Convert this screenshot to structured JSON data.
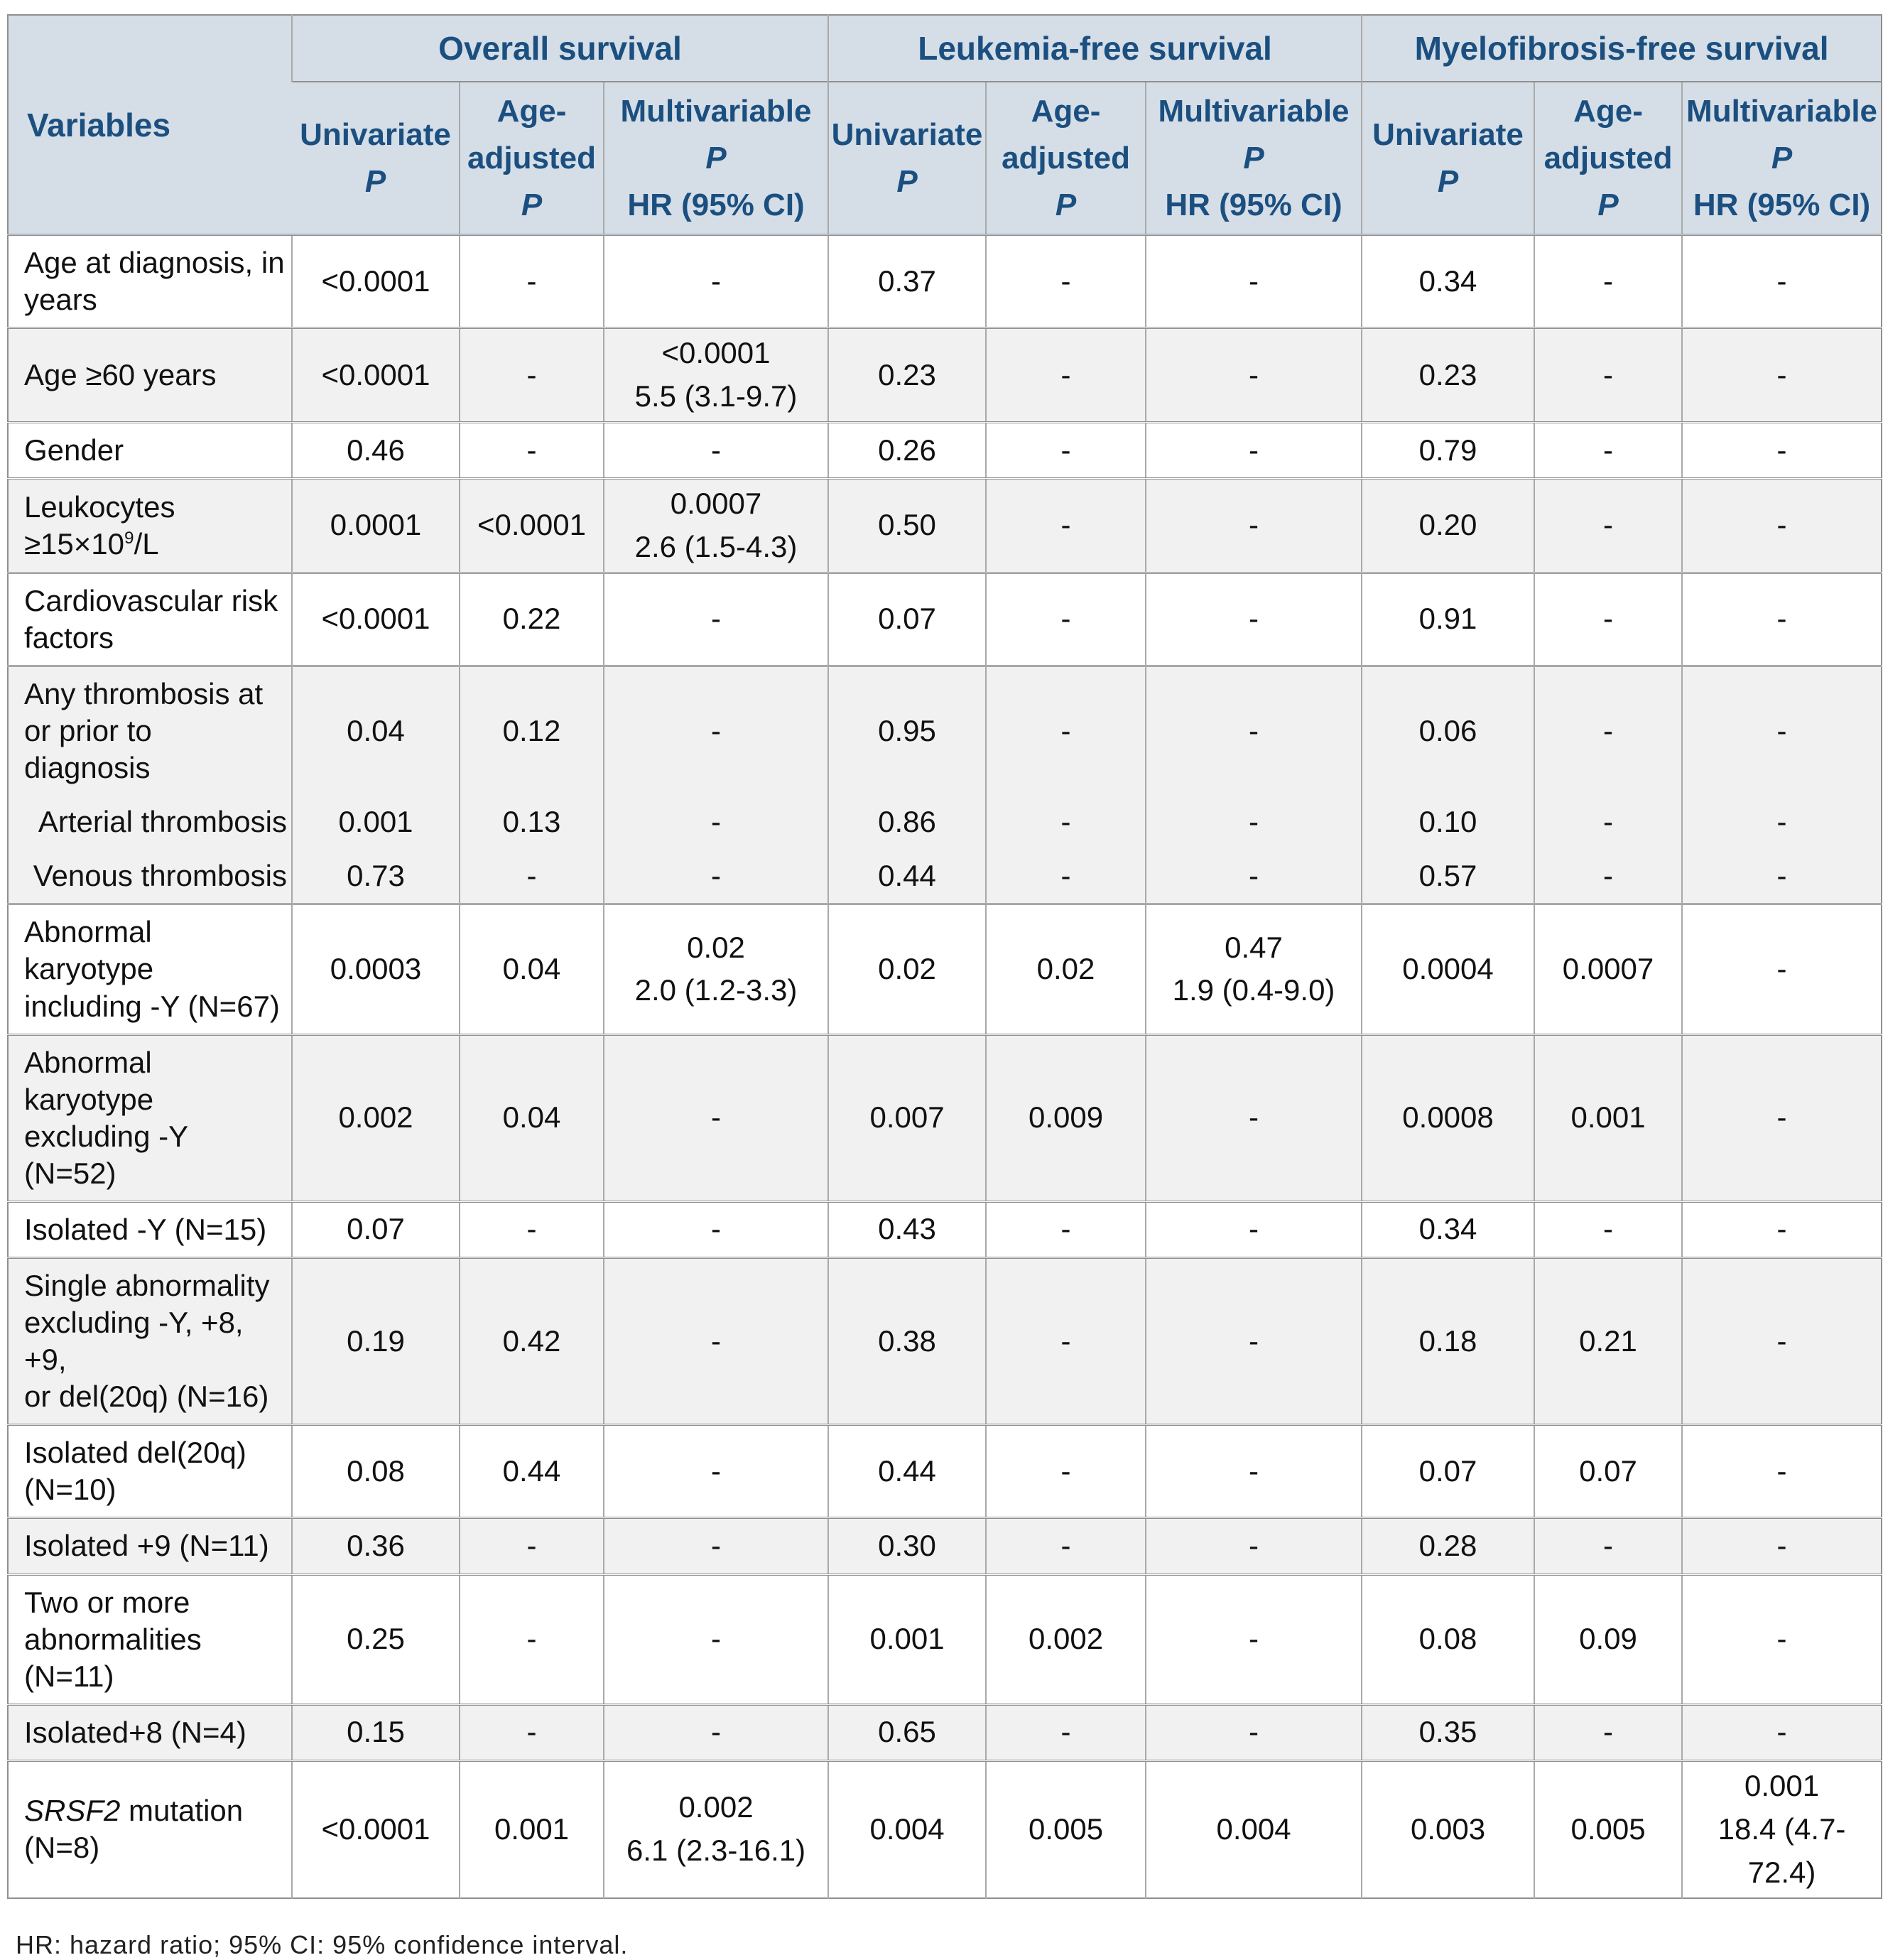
{
  "colors": {
    "header-bg": "#d5dee7",
    "header-text": "#1b4f80",
    "row-alt": "#f1f1f1",
    "border-dark": "#8f8f8f",
    "border-light": "#a9a9a9"
  },
  "table": {
    "variables_header": "Variables",
    "groups": [
      {
        "label": "Overall survival"
      },
      {
        "label": "Leukemia-free survival"
      },
      {
        "label": "Myelofibrosis-free survival"
      }
    ],
    "sub_headers": [
      {
        "lines": [
          {
            "text": "Univariate"
          },
          {
            "text": "P",
            "italic": true
          }
        ]
      },
      {
        "lines": [
          {
            "text": "Age-"
          },
          {
            "text": "adjusted"
          },
          {
            "text": "P",
            "italic": true
          }
        ]
      },
      {
        "lines": [
          {
            "text": "Multivariable"
          },
          {
            "text": "P",
            "italic": true
          },
          {
            "text": "HR (95% CI)"
          }
        ]
      },
      {
        "lines": [
          {
            "text": "Univariate"
          },
          {
            "text": "P",
            "italic": true
          }
        ]
      },
      {
        "lines": [
          {
            "text": "Age-"
          },
          {
            "text": "adjusted"
          },
          {
            "text": "P",
            "italic": true
          }
        ]
      },
      {
        "lines": [
          {
            "text": "Multivariable"
          },
          {
            "text": "P",
            "italic": true
          },
          {
            "text": "HR (95% CI)"
          }
        ]
      },
      {
        "lines": [
          {
            "text": "Univariate"
          },
          {
            "text": "P",
            "italic": true
          }
        ]
      },
      {
        "lines": [
          {
            "text": "Age-"
          },
          {
            "text": "adjusted"
          },
          {
            "text": "P",
            "italic": true
          }
        ]
      },
      {
        "lines": [
          {
            "text": "Multivariable"
          },
          {
            "text": "P",
            "italic": true
          },
          {
            "text": "HR (95% CI)"
          }
        ]
      }
    ],
    "rows": [
      {
        "label": "Age at diagnosis, in\nyears",
        "shade": "white",
        "cells": [
          "<0.0001",
          "-",
          "-",
          "0.37",
          "-",
          "-",
          "0.34",
          "-",
          "-"
        ]
      },
      {
        "label": "Age ≥60 years",
        "shade": "gray",
        "cells": [
          "<0.0001",
          "-",
          "<0.0001\n5.5 (3.1-9.7)",
          "0.23",
          "-",
          "-",
          "0.23",
          "-",
          "-"
        ]
      },
      {
        "label": "Gender",
        "shade": "white",
        "cells": [
          "0.46",
          "-",
          "-",
          "0.26",
          "-",
          "-",
          "0.79",
          "-",
          "-"
        ]
      },
      {
        "label_parts": [
          {
            "text": "Leukocytes\n≥15×10"
          },
          {
            "text": "9",
            "sup": true
          },
          {
            "text": "/L"
          }
        ],
        "shade": "gray",
        "cells": [
          "0.0001",
          "<0.0001",
          "0.0007\n2.6 (1.5-4.3)",
          "0.50",
          "-",
          "-",
          "0.20",
          "-",
          "-"
        ]
      },
      {
        "label": "Cardiovascular risk\nfactors",
        "shade": "white",
        "cells": [
          "<0.0001",
          "0.22",
          "-",
          "0.07",
          "-",
          "-",
          "0.91",
          "-",
          "-"
        ]
      },
      {
        "label": "Any thrombosis at\nor prior to diagnosis",
        "shade": "gray",
        "cells": [
          "0.04",
          "0.12",
          "-",
          "0.95",
          "-",
          "-",
          "0.06",
          "-",
          "-"
        ]
      },
      {
        "label": "Arterial thrombosis",
        "shade": "gray",
        "no_top_border": true,
        "label_align": "right",
        "cells": [
          "0.001",
          "0.13",
          "-",
          "0.86",
          "-",
          "-",
          "0.10",
          "-",
          "-"
        ]
      },
      {
        "label": "Venous thrombosis",
        "shade": "gray",
        "no_top_border": true,
        "label_align": "right",
        "cells": [
          "0.73",
          "-",
          "-",
          "0.44",
          "-",
          "-",
          "0.57",
          "-",
          "-"
        ]
      },
      {
        "label": "Abnormal karyotype\nincluding -Y (N=67)",
        "shade": "white",
        "cells": [
          "0.0003",
          "0.04",
          "0.02\n2.0 (1.2-3.3)",
          "0.02",
          "0.02",
          "0.47\n1.9 (0.4-9.0)",
          "0.0004",
          "0.0007",
          "-"
        ]
      },
      {
        "label": "Abnormal karyotype\nexcluding -Y (N=52)",
        "shade": "gray",
        "cells": [
          "0.002",
          "0.04",
          "-",
          "0.007",
          "0.009",
          "-",
          "0.0008",
          "0.001",
          "-"
        ]
      },
      {
        "label": "Isolated -Y (N=15)",
        "shade": "white",
        "cells": [
          "0.07",
          "-",
          "-",
          "0.43",
          "-",
          "-",
          "0.34",
          "-",
          "-"
        ]
      },
      {
        "label": "Single abnormality\nexcluding -Y, +8, +9,\nor del(20q) (N=16)",
        "shade": "gray",
        "cells": [
          "0.19",
          "0.42",
          "-",
          "0.38",
          "-",
          "-",
          "0.18",
          "0.21",
          "-"
        ]
      },
      {
        "label": "Isolated del(20q)\n(N=10)",
        "shade": "white",
        "cells": [
          "0.08",
          "0.44",
          "-",
          "0.44",
          "-",
          "-",
          "0.07",
          "0.07",
          "-"
        ]
      },
      {
        "label": "Isolated +9 (N=11)",
        "shade": "gray",
        "cells": [
          "0.36",
          "-",
          "-",
          "0.30",
          "-",
          "-",
          "0.28",
          "-",
          "-"
        ]
      },
      {
        "label": "Two or more\nabnormalities\n(N=11)",
        "shade": "white",
        "cells": [
          "0.25",
          "-",
          "-",
          "0.001",
          "0.002",
          "-",
          "0.08",
          "0.09",
          "-"
        ]
      },
      {
        "label": "Isolated+8 (N=4)",
        "shade": "gray",
        "cells": [
          "0.15",
          "-",
          "-",
          "0.65",
          "-",
          "-",
          "0.35",
          "-",
          "-"
        ]
      },
      {
        "label_parts": [
          {
            "text": "SRSF2",
            "italic": true
          },
          {
            "text": " mutation\n(N=8)"
          }
        ],
        "shade": "white",
        "cells": [
          "<0.0001",
          "0.001",
          "0.002\n6.1 (2.3-16.1)",
          "0.004",
          "0.005",
          "0.004",
          "0.003",
          "0.005",
          "0.001\n18.4 (4.7-72.4)"
        ]
      }
    ],
    "footnote": "HR: hazard ratio; 95% CI: 95% confidence interval."
  }
}
